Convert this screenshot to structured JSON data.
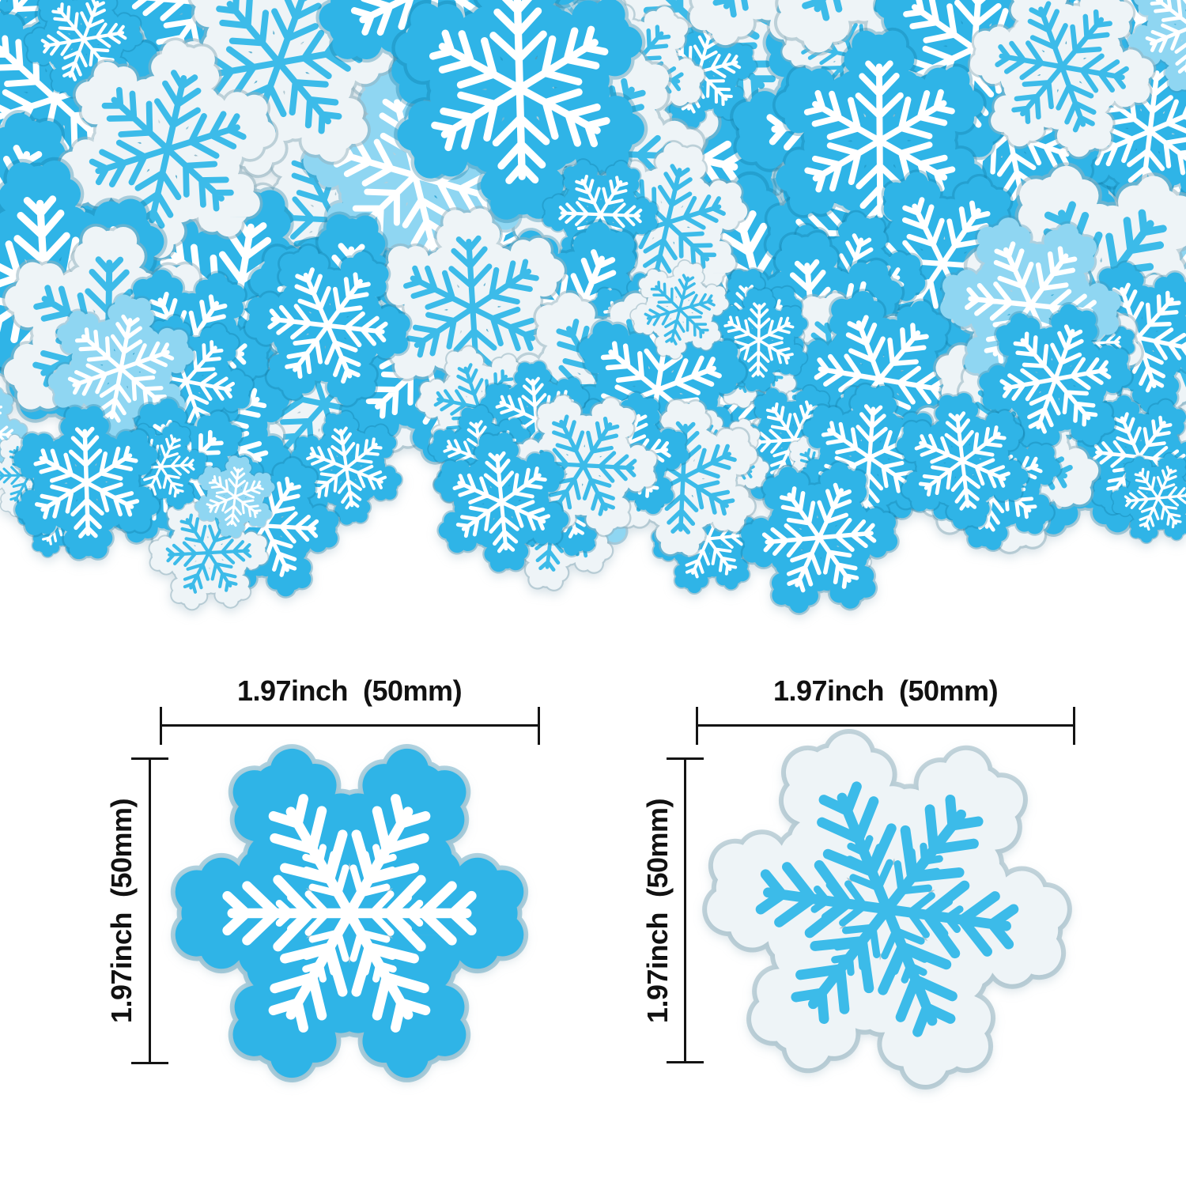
{
  "image": {
    "subject": "snowflake confetti product photo with size diagram",
    "background": "#ffffff"
  },
  "colors": {
    "blue_flake": "#2fb4e7",
    "light_blue_flake": "#8fd6f2",
    "white_flake": "#eef4f7",
    "print_white": "#ffffff",
    "print_blue": "#3cbbe9",
    "rim_on_blue": "rgba(14,118,160,0.32)",
    "rim_on_white": "rgba(148,178,192,0.55)",
    "rim_on_light": "rgba(70,150,185,0.38)",
    "measure_line": "#141414"
  },
  "pile": {
    "name": "snowflake-confetti-pile"
  },
  "measurements": {
    "left": {
      "width_label": "1.97inch  (50mm)",
      "height_label": "1.97inch  (50mm)",
      "flake_style": "blue with white print"
    },
    "right": {
      "width_label": "1.97inch  (50mm)",
      "height_label": "1.97inch  (50mm)",
      "flake_style": "white with blue print"
    }
  }
}
